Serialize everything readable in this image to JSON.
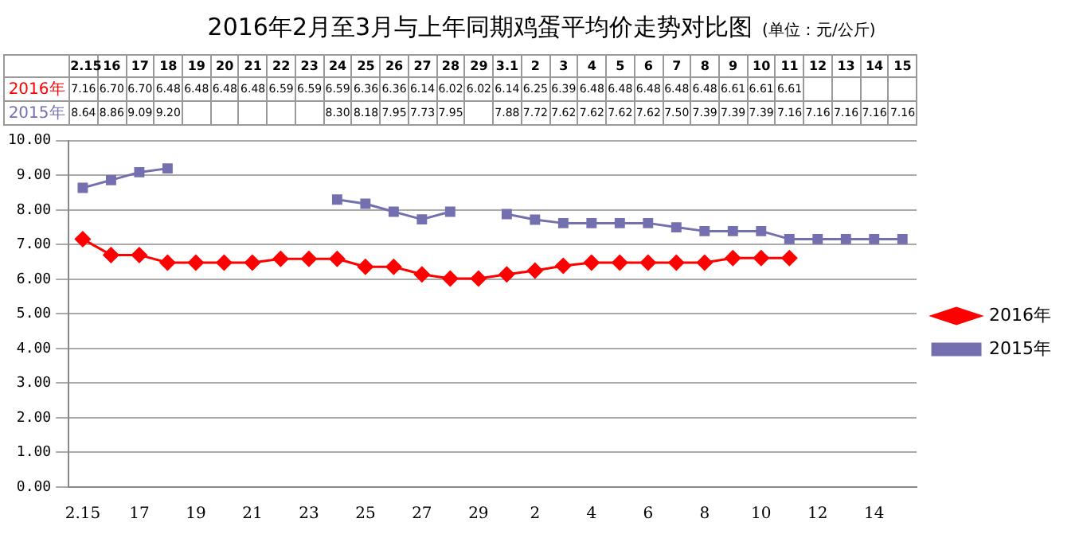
{
  "chart_data": {
    "type": "line",
    "title": "2016年2月至3月与上年同期鸡蛋平均价走势对比图",
    "subtitle": "(单位：元/公斤)",
    "categories": [
      "2.15",
      "16",
      "17",
      "18",
      "19",
      "20",
      "21",
      "22",
      "23",
      "24",
      "25",
      "26",
      "27",
      "28",
      "29",
      "3.1",
      "2",
      "3",
      "4",
      "5",
      "6",
      "7",
      "8",
      "9",
      "10",
      "11",
      "12",
      "13",
      "14",
      "15"
    ],
    "series": [
      {
        "name": "2016年",
        "color": "#ff0000",
        "marker": "diamond",
        "values": [
          7.16,
          6.7,
          6.7,
          6.48,
          6.48,
          6.48,
          6.48,
          6.59,
          6.59,
          6.59,
          6.36,
          6.36,
          6.14,
          6.02,
          6.02,
          6.14,
          6.25,
          6.39,
          6.48,
          6.48,
          6.48,
          6.48,
          6.48,
          6.61,
          6.61,
          6.61,
          null,
          null,
          null,
          null
        ],
        "value_labels": [
          "7.16",
          "6.70",
          "6.70",
          "6.48",
          "6.48",
          "6.48",
          "6.48",
          "6.59",
          "6.59",
          "6.59",
          "6.36",
          "6.36",
          "6.14",
          "6.02",
          "6.02",
          "6.14",
          "6.25",
          "6.39",
          "6.48",
          "6.48",
          "6.48",
          "6.48",
          "6.48",
          "6.61",
          "6.61",
          "6.61",
          null,
          null,
          null,
          null
        ]
      },
      {
        "name": "2015年",
        "color": "#7470b0",
        "marker": "square",
        "values": [
          8.64,
          8.86,
          9.09,
          9.2,
          null,
          null,
          null,
          null,
          null,
          8.3,
          8.18,
          7.95,
          7.73,
          7.95,
          null,
          7.88,
          7.72,
          7.62,
          7.62,
          7.62,
          7.62,
          7.5,
          7.39,
          7.39,
          7.39,
          7.16,
          7.16,
          7.16,
          7.16,
          7.16
        ],
        "value_labels": [
          "8.64",
          "8.86",
          "9.09",
          "9.20",
          null,
          null,
          null,
          null,
          null,
          "8.30",
          "8.18",
          "7.95",
          "7.73",
          "7.95",
          null,
          "7.88",
          "7.72",
          "7.62",
          "7.62",
          "7.62",
          "7.62",
          "7.50",
          "7.39",
          "7.39",
          "7.39",
          "7.16",
          "7.16",
          "7.16",
          "7.16",
          "7.16"
        ]
      }
    ],
    "ylim": [
      0,
      10
    ],
    "yticks": [
      {
        "value": 0,
        "label": "0.00"
      },
      {
        "value": 1,
        "label": "1.00"
      },
      {
        "value": 2,
        "label": "2.00"
      },
      {
        "value": 3,
        "label": "3.00"
      },
      {
        "value": 4,
        "label": "4.00"
      },
      {
        "value": 5,
        "label": "5.00"
      },
      {
        "value": 6,
        "label": "6.00"
      },
      {
        "value": 7,
        "label": "7.00"
      },
      {
        "value": 8,
        "label": "8.00"
      },
      {
        "value": 9,
        "label": "9.00"
      },
      {
        "value": 10,
        "label": "10.00"
      }
    ],
    "grid": "y",
    "legend": "right"
  }
}
